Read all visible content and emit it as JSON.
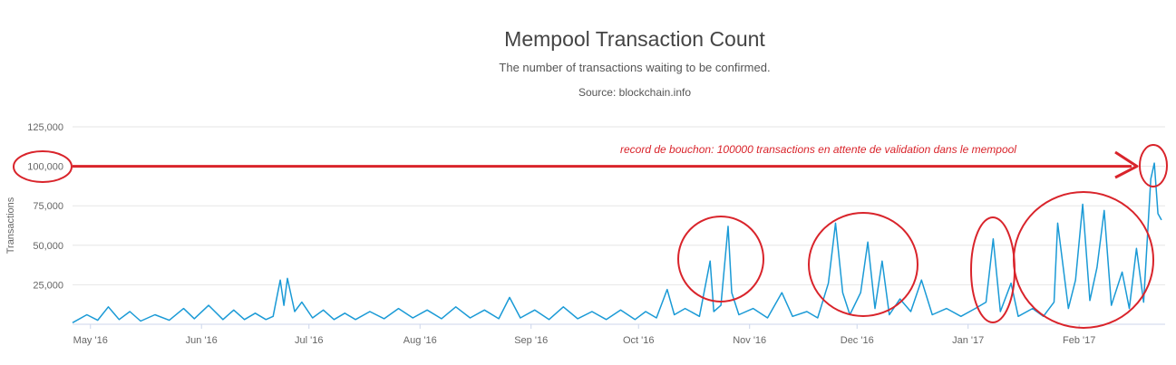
{
  "chart_data": {
    "type": "line",
    "title": "Mempool Transaction Count",
    "subtitle": "The number of transactions waiting to be confirmed.",
    "source": "Source: blockchain.info",
    "ylabel": "Transactions",
    "xlabel": "",
    "ylim": [
      0,
      125000
    ],
    "xlim": [
      "2016-04-26",
      "2017-02-25"
    ],
    "grid": true,
    "y_ticks": [
      {
        "value": 25000,
        "label": "25,000"
      },
      {
        "value": 50000,
        "label": "50,000"
      },
      {
        "value": 75000,
        "label": "75,000"
      },
      {
        "value": 100000,
        "label": "100,000"
      },
      {
        "value": 125000,
        "label": "125,000"
      }
    ],
    "x_ticks": [
      {
        "date": "2016-05-01",
        "label": "May '16"
      },
      {
        "date": "2016-06-01",
        "label": "Jun '16"
      },
      {
        "date": "2016-07-01",
        "label": "Jul '16"
      },
      {
        "date": "2016-08-01",
        "label": "Aug '16"
      },
      {
        "date": "2016-09-01",
        "label": "Sep '16"
      },
      {
        "date": "2016-10-01",
        "label": "Oct '16"
      },
      {
        "date": "2016-11-01",
        "label": "Nov '16"
      },
      {
        "date": "2016-12-01",
        "label": "Dec '16"
      },
      {
        "date": "2017-01-01",
        "label": "Jan '17"
      },
      {
        "date": "2017-02-01",
        "label": "Feb '17"
      }
    ],
    "series": [
      {
        "color": "#1a9ad6",
        "points": [
          [
            "2016-04-26",
            1000
          ],
          [
            "2016-04-30",
            6000
          ],
          [
            "2016-05-03",
            2500
          ],
          [
            "2016-05-06",
            11000
          ],
          [
            "2016-05-09",
            3000
          ],
          [
            "2016-05-12",
            8000
          ],
          [
            "2016-05-15",
            2000
          ],
          [
            "2016-05-19",
            6000
          ],
          [
            "2016-05-23",
            2500
          ],
          [
            "2016-05-27",
            10000
          ],
          [
            "2016-05-30",
            3500
          ],
          [
            "2016-06-03",
            12000
          ],
          [
            "2016-06-07",
            3000
          ],
          [
            "2016-06-10",
            9000
          ],
          [
            "2016-06-13",
            3000
          ],
          [
            "2016-06-16",
            7000
          ],
          [
            "2016-06-19",
            3000
          ],
          [
            "2016-06-21",
            5000
          ],
          [
            "2016-06-23",
            28000
          ],
          [
            "2016-06-24",
            12000
          ],
          [
            "2016-06-25",
            29000
          ],
          [
            "2016-06-27",
            8000
          ],
          [
            "2016-06-29",
            14000
          ],
          [
            "2016-07-02",
            4000
          ],
          [
            "2016-07-05",
            9000
          ],
          [
            "2016-07-08",
            3000
          ],
          [
            "2016-07-11",
            7000
          ],
          [
            "2016-07-14",
            3000
          ],
          [
            "2016-07-18",
            8000
          ],
          [
            "2016-07-22",
            3500
          ],
          [
            "2016-07-26",
            10000
          ],
          [
            "2016-07-30",
            4000
          ],
          [
            "2016-08-03",
            9000
          ],
          [
            "2016-08-07",
            3500
          ],
          [
            "2016-08-11",
            11000
          ],
          [
            "2016-08-15",
            4000
          ],
          [
            "2016-08-19",
            9000
          ],
          [
            "2016-08-23",
            3500
          ],
          [
            "2016-08-26",
            17000
          ],
          [
            "2016-08-29",
            4000
          ],
          [
            "2016-09-02",
            9000
          ],
          [
            "2016-09-06",
            3000
          ],
          [
            "2016-09-10",
            11000
          ],
          [
            "2016-09-14",
            3500
          ],
          [
            "2016-09-18",
            8000
          ],
          [
            "2016-09-22",
            3000
          ],
          [
            "2016-09-26",
            9000
          ],
          [
            "2016-09-30",
            3000
          ],
          [
            "2016-10-03",
            8000
          ],
          [
            "2016-10-06",
            4000
          ],
          [
            "2016-10-09",
            22000
          ],
          [
            "2016-10-11",
            6000
          ],
          [
            "2016-10-14",
            10000
          ],
          [
            "2016-10-18",
            5000
          ],
          [
            "2016-10-21",
            40000
          ],
          [
            "2016-10-22",
            8000
          ],
          [
            "2016-10-24",
            12000
          ],
          [
            "2016-10-26",
            62000
          ],
          [
            "2016-10-27",
            20000
          ],
          [
            "2016-10-29",
            6000
          ],
          [
            "2016-11-02",
            10000
          ],
          [
            "2016-11-06",
            4000
          ],
          [
            "2016-11-10",
            20000
          ],
          [
            "2016-11-13",
            5000
          ],
          [
            "2016-11-17",
            8000
          ],
          [
            "2016-11-20",
            4000
          ],
          [
            "2016-11-23",
            26000
          ],
          [
            "2016-11-25",
            64000
          ],
          [
            "2016-11-27",
            20000
          ],
          [
            "2016-11-29",
            6000
          ],
          [
            "2016-12-02",
            20000
          ],
          [
            "2016-12-04",
            52000
          ],
          [
            "2016-12-06",
            10000
          ],
          [
            "2016-12-08",
            40000
          ],
          [
            "2016-12-10",
            6000
          ],
          [
            "2016-12-13",
            16000
          ],
          [
            "2016-12-16",
            8000
          ],
          [
            "2016-12-19",
            28000
          ],
          [
            "2016-12-22",
            6000
          ],
          [
            "2016-12-26",
            10000
          ],
          [
            "2016-12-30",
            5000
          ],
          [
            "2017-01-03",
            10000
          ],
          [
            "2017-01-06",
            14000
          ],
          [
            "2017-01-08",
            54000
          ],
          [
            "2017-01-10",
            8000
          ],
          [
            "2017-01-13",
            26000
          ],
          [
            "2017-01-15",
            5000
          ],
          [
            "2017-01-19",
            10000
          ],
          [
            "2017-01-22",
            5000
          ],
          [
            "2017-01-25",
            14000
          ],
          [
            "2017-01-26",
            64000
          ],
          [
            "2017-01-29",
            10000
          ],
          [
            "2017-01-31",
            28000
          ],
          [
            "2017-02-02",
            76000
          ],
          [
            "2017-02-04",
            15000
          ],
          [
            "2017-02-06",
            36000
          ],
          [
            "2017-02-08",
            72000
          ],
          [
            "2017-02-10",
            12000
          ],
          [
            "2017-02-13",
            33000
          ],
          [
            "2017-02-15",
            10000
          ],
          [
            "2017-02-17",
            48000
          ],
          [
            "2017-02-19",
            14000
          ],
          [
            "2017-02-21",
            92000
          ],
          [
            "2017-02-22",
            102000
          ],
          [
            "2017-02-23",
            70000
          ],
          [
            "2017-02-24",
            66000
          ]
        ]
      }
    ],
    "annotations": [
      {
        "text": "record de bouchon: 100000 transactions en attente de validation dans le mempool",
        "color": "#d9242b"
      }
    ]
  }
}
